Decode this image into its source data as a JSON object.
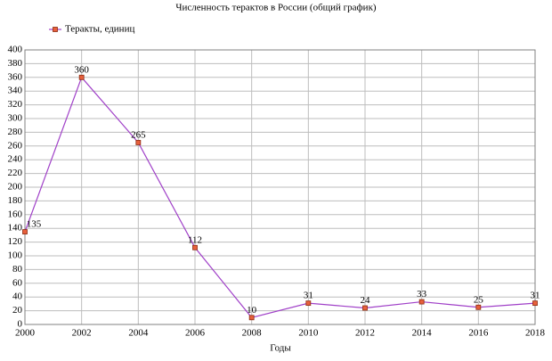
{
  "chart_data": {
    "type": "line",
    "title": "Численность терактов в России (общий график)",
    "x_label": "Годы",
    "x": [
      2000,
      2002,
      2004,
      2006,
      2008,
      2010,
      2012,
      2014,
      2016,
      2018
    ],
    "series": [
      {
        "name": "Теракты, единиц",
        "color": "#a040c8",
        "marker_color": "#e8603c",
        "values": [
          135,
          360,
          265,
          112,
          10,
          31,
          24,
          33,
          25,
          31
        ]
      }
    ],
    "xlim": [
      2000,
      2018
    ],
    "xticks": [
      2000,
      2002,
      2004,
      2006,
      2008,
      2010,
      2012,
      2014,
      2016,
      2018
    ],
    "ylim": [
      0,
      400
    ],
    "yticks": [
      0,
      20,
      40,
      60,
      80,
      100,
      120,
      140,
      160,
      180,
      200,
      220,
      240,
      260,
      280,
      300,
      320,
      340,
      360,
      380,
      400
    ],
    "grid": true,
    "legend": "top-left"
  }
}
